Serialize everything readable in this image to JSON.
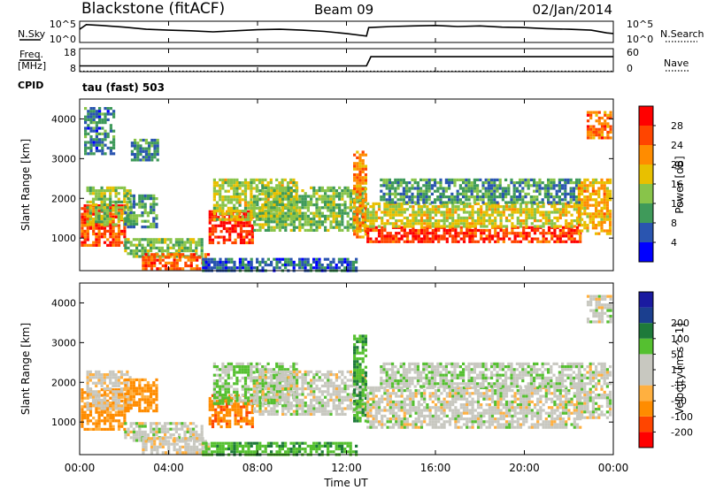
{
  "header": {
    "station": "Blackstone (fitACF)",
    "beam": "Beam 09",
    "date": "02/Jan/2014",
    "cpid_label": "CPID",
    "cpid_value": "tau (fast) 503"
  },
  "x_axis": {
    "label": "Time UT",
    "ticks": [
      "00:00",
      "04:00",
      "08:00",
      "12:00",
      "16:00",
      "20:00",
      "00:00"
    ],
    "tick_hours": [
      0,
      4,
      8,
      12,
      16,
      20,
      24
    ],
    "range": [
      0,
      24
    ]
  },
  "nsky_panel": {
    "left_label": "N.Sky",
    "right_label": "N.Search",
    "left_ticks": [
      "10^5",
      "10^0"
    ],
    "right_ticks": [
      "10^5",
      "10^0"
    ]
  },
  "freq_panel": {
    "left_label_top": "Freq.",
    "left_label_bottom": "[MHz]",
    "right_label": "Nave",
    "left_ticks": [
      "18",
      "8"
    ],
    "right_ticks": [
      "60",
      "0"
    ]
  },
  "colors": {
    "power_scale": [
      "#0000ff",
      "#2a55b0",
      "#3f9a5a",
      "#88c44a",
      "#e8c000",
      "#ff8c00",
      "#ff4500",
      "#ff0000"
    ],
    "velocity_scale": [
      "#ff0000",
      "#ff4500",
      "#ff8c00",
      "#ffb040",
      "#c8c8c0",
      "#c8c8c0",
      "#55c030",
      "#1e7a3a",
      "#1b3f8f",
      "#1a1aa0"
    ]
  },
  "chart_data": [
    {
      "type": "line",
      "title": "N.Sky / N.Search",
      "x": [
        0,
        0.3,
        1,
        2,
        3,
        4,
        5,
        6,
        7,
        8,
        9,
        10,
        11,
        12,
        12.9,
        13,
        14,
        15,
        16,
        17,
        18,
        19,
        20,
        21,
        22,
        23,
        23.7,
        24
      ],
      "series": [
        {
          "name": "N.Sky",
          "values": [
            0.62,
            0.84,
            0.8,
            0.72,
            0.62,
            0.58,
            0.55,
            0.5,
            0.55,
            0.6,
            0.62,
            0.58,
            0.52,
            0.42,
            0.3,
            0.7,
            0.75,
            0.78,
            0.8,
            0.75,
            0.78,
            0.72,
            0.7,
            0.65,
            0.62,
            0.58,
            0.45,
            0.42
          ]
        }
      ]
    },
    {
      "type": "line",
      "title": "Freq. / Nave",
      "x": [
        0,
        12.9,
        13.1,
        24
      ],
      "series": [
        {
          "name": "Freq.",
          "values": [
            10.5,
            10.5,
            14.5,
            14.5
          ]
        },
        {
          "name": "Nave",
          "values": [
            12,
            12,
            12,
            12
          ]
        }
      ]
    },
    {
      "type": "heatmap",
      "title": "Power",
      "xlabel": "Time UT",
      "ylabel": "Slant Range [km]",
      "xlim": [
        0,
        24
      ],
      "ylim": [
        180,
        4500
      ],
      "y_ticks": [
        1000,
        2000,
        3000,
        4000
      ],
      "colorbar_label": "Power [dB]",
      "colorbar_ticks": [
        4,
        8,
        12,
        16,
        20,
        24,
        28
      ],
      "colorbar_range": [
        0,
        32
      ],
      "scatter_bands": [
        {
          "t0": 0.05,
          "t1": 2.0,
          "r0": 850,
          "r1": 1850,
          "power": 26
        },
        {
          "t0": 0.3,
          "t1": 2.3,
          "r0": 1350,
          "r1": 2300,
          "power": 14
        },
        {
          "t0": 2.0,
          "t1": 3.5,
          "r0": 1250,
          "r1": 2100,
          "power": 10
        },
        {
          "t0": 2.3,
          "t1": 3.5,
          "r0": 3000,
          "r1": 3500,
          "power": 9
        },
        {
          "t0": 0.2,
          "t1": 1.5,
          "r0": 3100,
          "r1": 4300,
          "power": 8
        },
        {
          "t0": 2.0,
          "t1": 5.5,
          "r0": 550,
          "r1": 1000,
          "power": 13
        },
        {
          "t0": 2.8,
          "t1": 5.8,
          "r0": 200,
          "r1": 620,
          "power": 25
        },
        {
          "t0": 5.8,
          "t1": 7.8,
          "r0": 850,
          "r1": 1700,
          "power": 28
        },
        {
          "t0": 6.0,
          "t1": 9.8,
          "r0": 1500,
          "r1": 2500,
          "power": 16
        },
        {
          "t0": 7.8,
          "t1": 12.8,
          "r0": 1200,
          "r1": 2300,
          "power": 13
        },
        {
          "t0": 5.5,
          "t1": 12.5,
          "r0": 200,
          "r1": 500,
          "power": 7
        },
        {
          "t0": 12.3,
          "t1": 12.9,
          "r0": 1000,
          "r1": 3200,
          "power": 22
        },
        {
          "t0": 12.9,
          "t1": 22.5,
          "r0": 900,
          "r1": 1300,
          "power": 27
        },
        {
          "t0": 12.9,
          "t1": 22.5,
          "r0": 1300,
          "r1": 1900,
          "power": 17
        },
        {
          "t0": 13.5,
          "t1": 22.5,
          "r0": 1900,
          "r1": 2500,
          "power": 10
        },
        {
          "t0": 22.4,
          "t1": 23.9,
          "r0": 1100,
          "r1": 2500,
          "power": 20
        },
        {
          "t0": 22.8,
          "t1": 23.9,
          "r0": 3500,
          "r1": 4200,
          "power": 24
        }
      ]
    },
    {
      "type": "heatmap",
      "title": "Velocity",
      "xlabel": "Time UT",
      "ylabel": "Slant Range [km]",
      "xlim": [
        0,
        24
      ],
      "ylim": [
        180,
        4500
      ],
      "y_ticks": [
        1000,
        2000,
        3000,
        4000
      ],
      "colorbar_label": "Velocity [m s^-1]",
      "colorbar_ticks": [
        -200,
        -100,
        -50,
        -15,
        15,
        50,
        100,
        200
      ],
      "scatter_bands": [
        {
          "t0": 0.05,
          "t1": 2.0,
          "r0": 850,
          "r1": 1850,
          "velocity": -60
        },
        {
          "t0": 0.3,
          "t1": 2.3,
          "r0": 1350,
          "r1": 2300,
          "velocity": -5
        },
        {
          "t0": 2.0,
          "t1": 3.5,
          "r0": 1250,
          "r1": 2100,
          "velocity": -60
        },
        {
          "t0": 2.0,
          "t1": 5.5,
          "r0": 550,
          "r1": 1000,
          "velocity": 0
        },
        {
          "t0": 2.8,
          "t1": 5.8,
          "r0": 200,
          "r1": 620,
          "velocity": -5
        },
        {
          "t0": 5.8,
          "t1": 7.8,
          "r0": 850,
          "r1": 1700,
          "velocity": -90
        },
        {
          "t0": 6.0,
          "t1": 9.8,
          "r0": 1500,
          "r1": 2500,
          "velocity": 20
        },
        {
          "t0": 7.8,
          "t1": 12.8,
          "r0": 1200,
          "r1": 2300,
          "velocity": 0
        },
        {
          "t0": 5.5,
          "t1": 12.5,
          "r0": 200,
          "r1": 500,
          "velocity": 40
        },
        {
          "t0": 12.3,
          "t1": 12.9,
          "r0": 1000,
          "r1": 3200,
          "velocity": 45
        },
        {
          "t0": 12.9,
          "t1": 22.5,
          "r0": 900,
          "r1": 1900,
          "velocity": 0
        },
        {
          "t0": 13.5,
          "t1": 22.5,
          "r0": 1900,
          "r1": 2500,
          "velocity": 5
        },
        {
          "t0": 22.4,
          "t1": 23.9,
          "r0": 1100,
          "r1": 2500,
          "velocity": 0
        },
        {
          "t0": 22.8,
          "t1": 23.9,
          "r0": 3500,
          "r1": 4200,
          "velocity": 0
        }
      ]
    }
  ]
}
